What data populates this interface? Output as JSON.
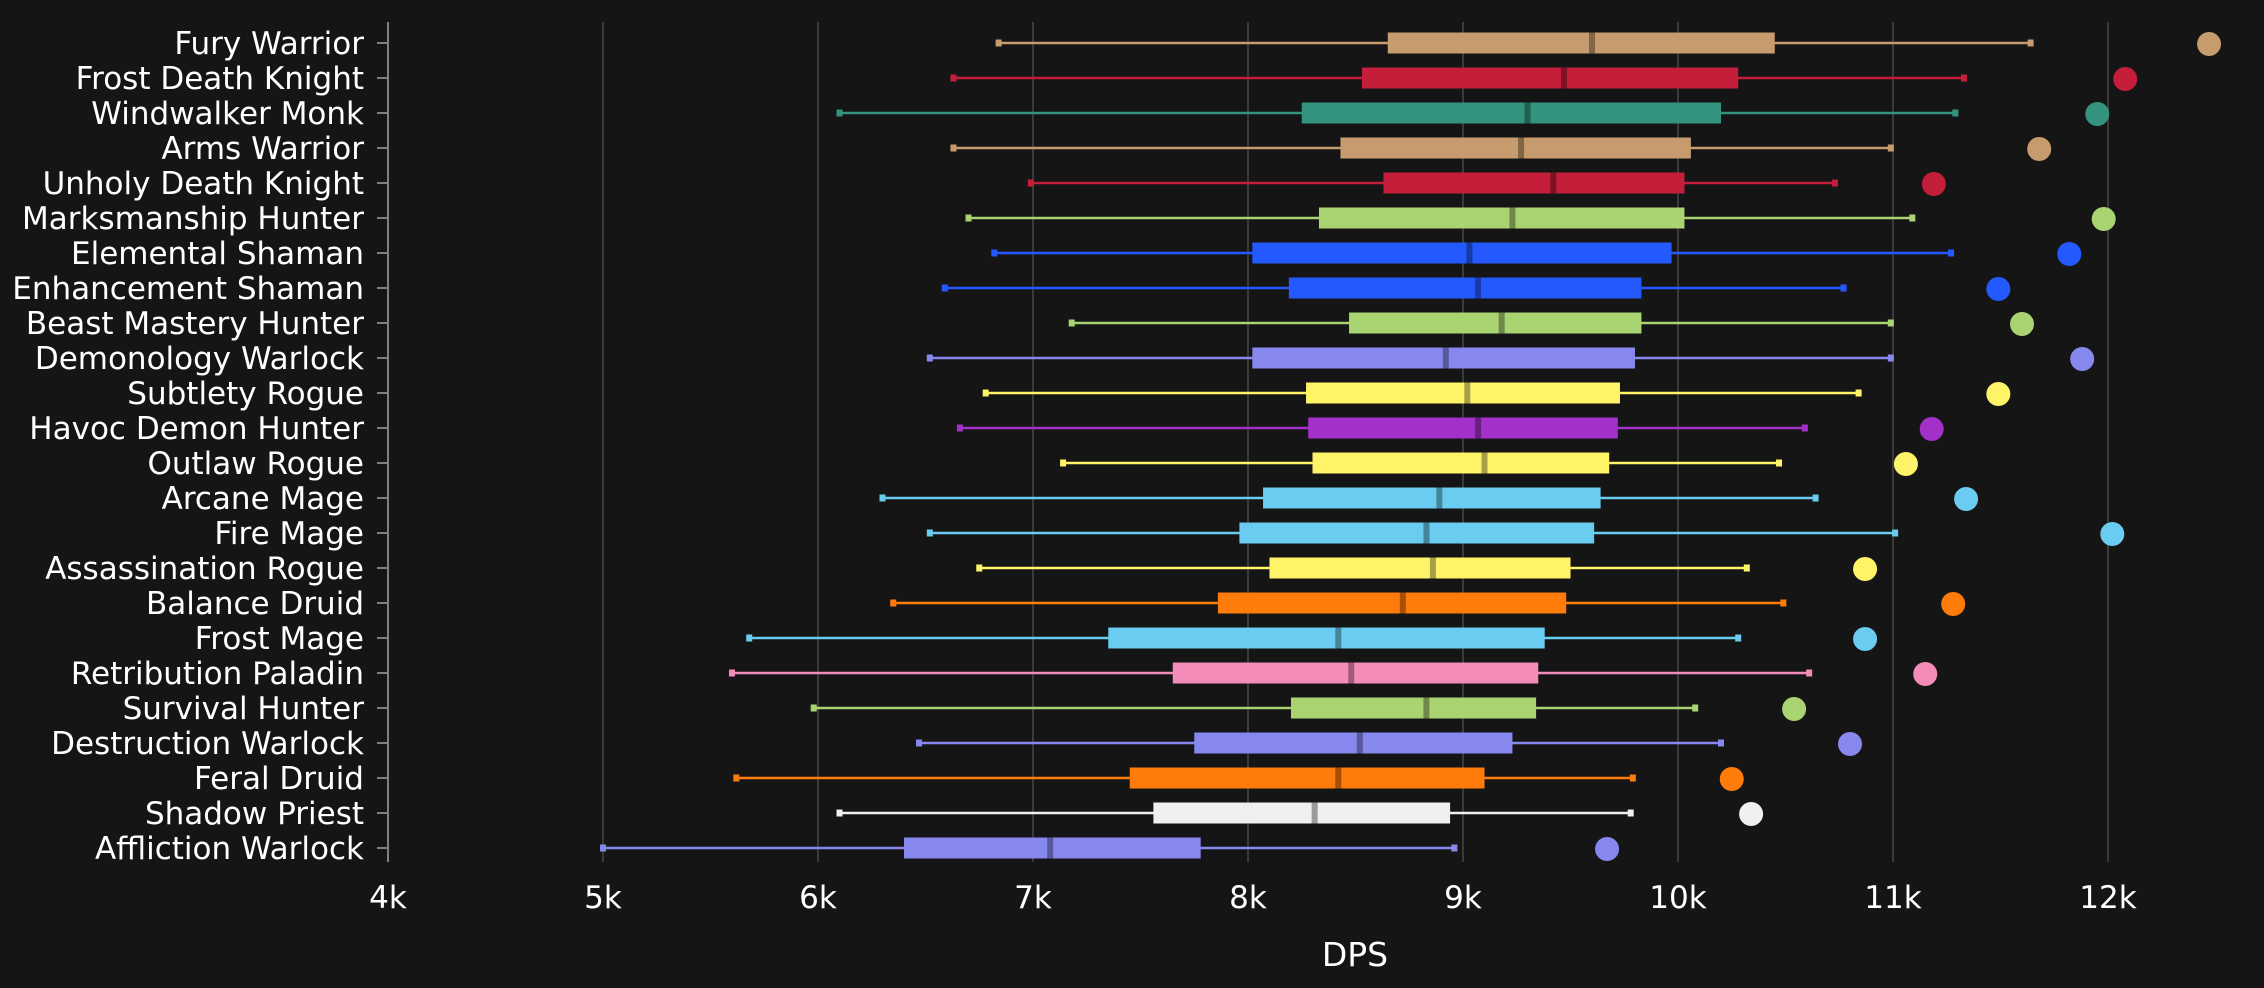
{
  "chart_data": {
    "type": "boxplot",
    "xlabel": "DPS",
    "xlim": [
      4000,
      12500
    ],
    "xticks": [
      {
        "value": 4000,
        "label": "4k"
      },
      {
        "value": 5000,
        "label": "5k"
      },
      {
        "value": 6000,
        "label": "6k"
      },
      {
        "value": 7000,
        "label": "7k"
      },
      {
        "value": 8000,
        "label": "8k"
      },
      {
        "value": 9000,
        "label": "9k"
      },
      {
        "value": 10000,
        "label": "10k"
      },
      {
        "value": 11000,
        "label": "11k"
      },
      {
        "value": 12000,
        "label": "12k"
      }
    ],
    "grid": "vertical",
    "background": "#151515",
    "series": [
      {
        "name": "Fury Warrior",
        "color": "#C69B6D",
        "min": 6840,
        "q1": 8650,
        "median": 9600,
        "q3": 10450,
        "max": 11640,
        "max_point": 12470
      },
      {
        "name": "Frost Death Knight",
        "color": "#C41E3A",
        "min": 6630,
        "q1": 8530,
        "median": 9470,
        "q3": 10280,
        "max": 11330,
        "max_point": 12080
      },
      {
        "name": "Windwalker Monk",
        "color": "#33937F",
        "min": 6100,
        "q1": 8250,
        "median": 9300,
        "q3": 10200,
        "max": 11290,
        "max_point": 11950
      },
      {
        "name": "Arms Warrior",
        "color": "#C69B6D",
        "min": 6630,
        "q1": 8430,
        "median": 9270,
        "q3": 10060,
        "max": 10990,
        "max_point": 11680
      },
      {
        "name": "Unholy Death Knight",
        "color": "#C41E3A",
        "min": 6990,
        "q1": 8630,
        "median": 9420,
        "q3": 10030,
        "max": 10730,
        "max_point": 11190
      },
      {
        "name": "Marksmanship Hunter",
        "color": "#AAD372",
        "min": 6700,
        "q1": 8330,
        "median": 9230,
        "q3": 10030,
        "max": 11090,
        "max_point": 11980
      },
      {
        "name": "Elemental Shaman",
        "color": "#2459FF",
        "min": 6820,
        "q1": 8020,
        "median": 9030,
        "q3": 9970,
        "max": 11270,
        "max_point": 11820
      },
      {
        "name": "Enhancement Shaman",
        "color": "#2459FF",
        "min": 6590,
        "q1": 8190,
        "median": 9070,
        "q3": 9830,
        "max": 10770,
        "max_point": 11490
      },
      {
        "name": "Beast Mastery Hunter",
        "color": "#AAD372",
        "min": 7180,
        "q1": 8470,
        "median": 9180,
        "q3": 9830,
        "max": 10990,
        "max_point": 11600
      },
      {
        "name": "Demonology Warlock",
        "color": "#8788EE",
        "min": 6520,
        "q1": 8020,
        "median": 8920,
        "q3": 9800,
        "max": 10990,
        "max_point": 11880
      },
      {
        "name": "Subtlety Rogue",
        "color": "#FFF468",
        "min": 6780,
        "q1": 8270,
        "median": 9020,
        "q3": 9730,
        "max": 10840,
        "max_point": 11490
      },
      {
        "name": "Havoc Demon Hunter",
        "color": "#A330C9",
        "min": 6660,
        "q1": 8280,
        "median": 9070,
        "q3": 9720,
        "max": 10590,
        "max_point": 11180
      },
      {
        "name": "Outlaw Rogue",
        "color": "#FFF468",
        "min": 7140,
        "q1": 8300,
        "median": 9100,
        "q3": 9680,
        "max": 10470,
        "max_point": 11060
      },
      {
        "name": "Arcane Mage",
        "color": "#69CCF0",
        "min": 6300,
        "q1": 8070,
        "median": 8890,
        "q3": 9640,
        "max": 10640,
        "max_point": 11340
      },
      {
        "name": "Fire Mage",
        "color": "#69CCF0",
        "min": 6520,
        "q1": 7960,
        "median": 8830,
        "q3": 9610,
        "max": 11010,
        "max_point": 12020
      },
      {
        "name": "Assassination Rogue",
        "color": "#FFF468",
        "min": 6750,
        "q1": 8100,
        "median": 8860,
        "q3": 9500,
        "max": 10320,
        "max_point": 10870
      },
      {
        "name": "Balance Druid",
        "color": "#FF7C0A",
        "min": 6350,
        "q1": 7860,
        "median": 8720,
        "q3": 9480,
        "max": 10490,
        "max_point": 11280
      },
      {
        "name": "Frost Mage",
        "color": "#69CCF0",
        "min": 5680,
        "q1": 7350,
        "median": 8420,
        "q3": 9380,
        "max": 10280,
        "max_point": 10870
      },
      {
        "name": "Retribution Paladin",
        "color": "#F48CBA",
        "min": 5600,
        "q1": 7650,
        "median": 8480,
        "q3": 9350,
        "max": 10610,
        "max_point": 11150
      },
      {
        "name": "Survival Hunter",
        "color": "#AAD372",
        "min": 5980,
        "q1": 8200,
        "median": 8830,
        "q3": 9340,
        "max": 10080,
        "max_point": 10540
      },
      {
        "name": "Destruction Warlock",
        "color": "#8788EE",
        "min": 6470,
        "q1": 7750,
        "median": 8520,
        "q3": 9230,
        "max": 10200,
        "max_point": 10800
      },
      {
        "name": "Feral Druid",
        "color": "#FF7C0A",
        "min": 5620,
        "q1": 7450,
        "median": 8420,
        "q3": 9100,
        "max": 9790,
        "max_point": 10250
      },
      {
        "name": "Shadow Priest",
        "color": "#F0F0F0",
        "min": 6100,
        "q1": 7560,
        "median": 8310,
        "q3": 8940,
        "max": 9780,
        "max_point": 10340
      },
      {
        "name": "Affliction Warlock",
        "color": "#8788EE",
        "min": 5000,
        "q1": 6400,
        "median": 7080,
        "q3": 7780,
        "max": 8960,
        "max_point": 9670
      }
    ]
  }
}
